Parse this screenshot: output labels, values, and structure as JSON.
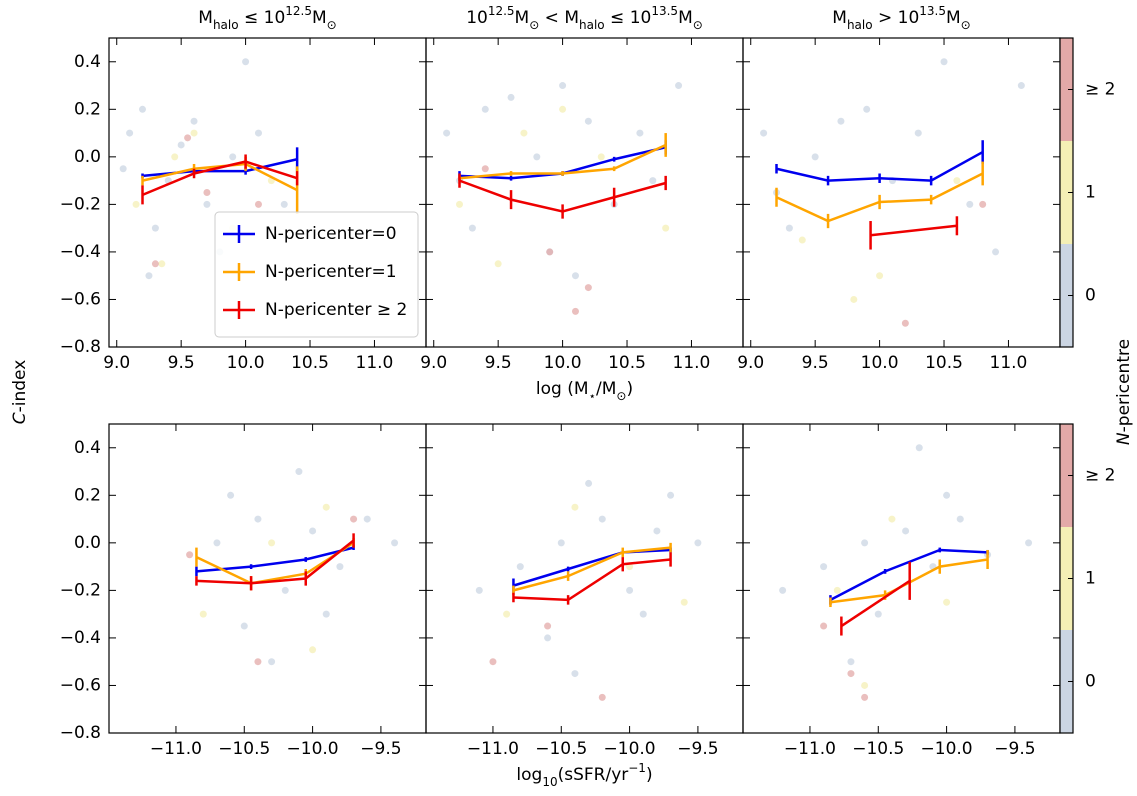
{
  "ylabel": [
    {
      "text": "C",
      "style": "italic"
    },
    {
      "text": "-index"
    }
  ],
  "colorbar": {
    "label": [
      {
        "text": "N",
        "style": "italic"
      },
      {
        "text": "-pericentre"
      }
    ],
    "lim": [
      -0.5,
      2.5
    ],
    "ticks": [
      0,
      1,
      {
        "value": 2,
        "label": "≥ 2"
      }
    ],
    "colors": [
      "#cbd5e3",
      "#f4efb5",
      "#e3a9a8"
    ]
  },
  "chart_data": [
    {
      "type": "scatter",
      "title": [
        {
          "text": "M"
        },
        {
          "text": "halo",
          "shift": "sub"
        },
        {
          "text": " ≤ 10"
        },
        {
          "text": "12.5",
          "shift": "super"
        },
        {
          "text": "M"
        },
        {
          "text": "⊙",
          "shift": "sub"
        }
      ],
      "xlim": [
        8.94,
        11.4
      ],
      "ylim": [
        -0.8,
        0.5
      ],
      "xticks": [
        {
          "value": 9,
          "label": "9.0"
        },
        9.5,
        {
          "value": 10,
          "label": "10.0"
        },
        10.5,
        {
          "value": 11,
          "label": "11.0"
        }
      ],
      "yticks": [
        0.4,
        0.2,
        {
          "value": 0,
          "label": "0.0"
        },
        {
          "value": -0.2,
          "label": "−0.2"
        },
        {
          "value": -0.4,
          "label": "−0.4"
        },
        {
          "value": -0.6,
          "label": "−0.6"
        },
        {
          "value": -0.8,
          "label": "−0.8"
        }
      ],
      "legend": "lower right",
      "points": [
        {
          "color": "#cbd5e3",
          "x": [
            9.1,
            9.3,
            9.5,
            9.7,
            9.9,
            10.1,
            9.2,
            10.0,
            9.4,
            9.8,
            9.05,
            9.6,
            10.3,
            9.25
          ],
          "y": [
            0.1,
            -0.3,
            0.05,
            -0.2,
            0.0,
            0.1,
            0.2,
            0.4,
            -0.1,
            -0.4,
            -0.05,
            0.15,
            -0.2,
            -0.5
          ]
        },
        {
          "color": "#f4efb5",
          "x": [
            9.15,
            9.6,
            10.2,
            9.35,
            9.9,
            9.45
          ],
          "y": [
            -0.2,
            0.1,
            -0.1,
            -0.45,
            -0.3,
            0.0
          ]
        },
        {
          "color": "#e3a9a8",
          "x": [
            9.3,
            9.7,
            10.1,
            9.55
          ],
          "y": [
            -0.45,
            -0.15,
            -0.2,
            0.08
          ]
        }
      ],
      "series": [
        {
          "name": "N-pericenter=0",
          "color": "#0000ee",
          "x": [
            9.2,
            9.6,
            10.0,
            10.4
          ],
          "values": [
            -0.08,
            -0.06,
            -0.06,
            -0.01
          ],
          "errors": [
            0.01,
            0.01,
            0.015,
            0.05
          ]
        },
        {
          "name": "N-pericenter=1",
          "color": "#ffa500",
          "x": [
            9.2,
            9.6,
            10.0,
            10.4
          ],
          "values": [
            -0.1,
            -0.05,
            -0.03,
            -0.14
          ],
          "errors": [
            0.02,
            0.02,
            0.03,
            0.1
          ]
        },
        {
          "name": "N-pericenter ≥ 2",
          "color": "#ee0000",
          "x": [
            9.2,
            9.6,
            10.0,
            10.4
          ],
          "values": [
            -0.16,
            -0.07,
            -0.02,
            -0.09
          ],
          "errors": [
            0.04,
            0.02,
            0.03,
            0.03
          ]
        }
      ]
    },
    {
      "type": "scatter",
      "title": [
        {
          "text": "10"
        },
        {
          "text": "12.5",
          "shift": "super"
        },
        {
          "text": "M"
        },
        {
          "text": "⊙",
          "shift": "sub"
        },
        {
          "text": " < M"
        },
        {
          "text": "halo",
          "shift": "sub"
        },
        {
          "text": " ≤ 10"
        },
        {
          "text": "13.5",
          "shift": "super"
        },
        {
          "text": "M"
        },
        {
          "text": "⊙",
          "shift": "sub"
        }
      ],
      "xlabel": [
        {
          "text": "log (M"
        },
        {
          "text": "⋆",
          "shift": "sub"
        },
        {
          "text": "/M"
        },
        {
          "text": "⊙",
          "shift": "sub"
        },
        {
          "text": ")"
        }
      ],
      "xlim": [
        8.94,
        11.4
      ],
      "ylim": [
        -0.8,
        0.5
      ],
      "xticks": [
        {
          "value": 9,
          "label": "9.0"
        },
        9.5,
        {
          "value": 10,
          "label": "10.0"
        },
        10.5,
        {
          "value": 11,
          "label": "11.0"
        }
      ],
      "points": [
        {
          "color": "#cbd5e3",
          "x": [
            9.1,
            9.4,
            9.8,
            10.2,
            10.6,
            9.3,
            9.9,
            10.4,
            10.9,
            9.6,
            10.1,
            9.2,
            10.7,
            10.0
          ],
          "y": [
            0.1,
            0.2,
            0.0,
            0.15,
            0.1,
            -0.3,
            -0.4,
            -0.2,
            0.3,
            0.25,
            -0.5,
            -0.1,
            -0.1,
            0.3
          ]
        },
        {
          "color": "#f4efb5",
          "x": [
            9.2,
            9.7,
            10.3,
            10.8,
            9.5,
            10.0
          ],
          "y": [
            -0.2,
            0.1,
            0.0,
            -0.3,
            -0.45,
            0.2
          ]
        },
        {
          "color": "#e3a9a8",
          "x": [
            9.4,
            9.9,
            10.2,
            10.1
          ],
          "y": [
            -0.05,
            -0.4,
            -0.55,
            -0.65
          ]
        }
      ],
      "series": [
        {
          "color": "#0000ee",
          "x": [
            9.2,
            9.6,
            10.0,
            10.4,
            10.8
          ],
          "values": [
            -0.08,
            -0.09,
            -0.07,
            -0.01,
            0.04
          ],
          "errors": [
            0.02,
            0.01,
            0.01,
            0.01,
            0.03
          ]
        },
        {
          "color": "#ffa500",
          "x": [
            9.2,
            9.6,
            10.0,
            10.4,
            10.8
          ],
          "values": [
            -0.09,
            -0.07,
            -0.07,
            -0.05,
            0.05
          ],
          "errors": [
            0.01,
            0.01,
            0.01,
            0.01,
            0.05
          ]
        },
        {
          "color": "#ee0000",
          "x": [
            9.2,
            9.6,
            10.0,
            10.4,
            10.8
          ],
          "values": [
            -0.1,
            -0.18,
            -0.23,
            -0.17,
            -0.11
          ],
          "errors": [
            0.03,
            0.04,
            0.03,
            0.04,
            0.03
          ]
        }
      ]
    },
    {
      "type": "scatter",
      "title": [
        {
          "text": "M"
        },
        {
          "text": "halo",
          "shift": "sub"
        },
        {
          "text": " > 10"
        },
        {
          "text": "13.5",
          "shift": "super"
        },
        {
          "text": "M"
        },
        {
          "text": "⊙",
          "shift": "sub"
        }
      ],
      "xlim": [
        8.94,
        11.4
      ],
      "ylim": [
        -0.8,
        0.5
      ],
      "xticks": [
        {
          "value": 9,
          "label": "9.0"
        },
        9.5,
        {
          "value": 10,
          "label": "10.0"
        },
        10.5,
        {
          "value": 11,
          "label": "11.0"
        }
      ],
      "points": [
        {
          "color": "#cbd5e3",
          "x": [
            9.1,
            9.5,
            9.9,
            10.3,
            10.7,
            11.1,
            9.3,
            10.1,
            10.5,
            9.7,
            10.9,
            9.2
          ],
          "y": [
            0.1,
            0.0,
            0.2,
            0.1,
            -0.2,
            0.3,
            -0.3,
            -0.1,
            0.4,
            0.15,
            -0.4,
            -0.15
          ]
        },
        {
          "color": "#f4efb5",
          "x": [
            9.4,
            10.0,
            10.6,
            9.8
          ],
          "y": [
            -0.35,
            -0.5,
            -0.1,
            -0.6
          ]
        },
        {
          "color": "#e3a9a8",
          "x": [
            10.2,
            10.8
          ],
          "y": [
            -0.7,
            -0.2
          ]
        }
      ],
      "series": [
        {
          "color": "#0000ee",
          "x": [
            9.2,
            9.6,
            10.0,
            10.4,
            10.8
          ],
          "values": [
            -0.05,
            -0.1,
            -0.09,
            -0.1,
            0.02
          ],
          "errors": [
            0.02,
            0.02,
            0.02,
            0.02,
            0.05
          ]
        },
        {
          "color": "#ffa500",
          "x": [
            9.2,
            9.6,
            10.0,
            10.4,
            10.8
          ],
          "values": [
            -0.17,
            -0.27,
            -0.19,
            -0.18,
            -0.07
          ],
          "errors": [
            0.04,
            0.03,
            0.03,
            0.02,
            0.05
          ]
        },
        {
          "color": "#ee0000",
          "x": [
            9.93,
            10.6
          ],
          "values": [
            -0.33,
            -0.29
          ],
          "errors": [
            0.06,
            0.04
          ]
        }
      ]
    },
    {
      "type": "scatter",
      "xlim": [
        -11.49,
        -9.17
      ],
      "ylim": [
        -0.8,
        0.5
      ],
      "xticks": [
        {
          "value": -11,
          "label": "−11.0"
        },
        {
          "value": -10.5,
          "label": "−10.5"
        },
        {
          "value": -10,
          "label": "−10.0"
        },
        {
          "value": -9.5,
          "label": "−9.5"
        }
      ],
      "yticks": [
        0.4,
        0.2,
        {
          "value": 0,
          "label": "0.0"
        },
        {
          "value": -0.2,
          "label": "−0.2"
        },
        {
          "value": -0.4,
          "label": "−0.4"
        },
        {
          "value": -0.6,
          "label": "−0.6"
        },
        {
          "value": -0.8,
          "label": "−0.8"
        }
      ],
      "points": [
        {
          "color": "#cbd5e3",
          "x": [
            -10.7,
            -10.4,
            -10.2,
            -10.0,
            -9.8,
            -9.6,
            -10.5,
            -10.1,
            -9.9,
            -10.3,
            -9.4,
            -10.6
          ],
          "y": [
            0.0,
            0.1,
            -0.2,
            0.05,
            -0.1,
            0.1,
            -0.35,
            0.3,
            -0.3,
            -0.5,
            0.0,
            0.2
          ]
        },
        {
          "color": "#f4efb5",
          "x": [
            -10.8,
            -10.3,
            -9.9,
            -10.0
          ],
          "y": [
            -0.3,
            0.0,
            0.15,
            -0.45
          ]
        },
        {
          "color": "#e3a9a8",
          "x": [
            -10.4,
            -9.7,
            -10.9
          ],
          "y": [
            -0.5,
            0.1,
            -0.05
          ]
        }
      ],
      "series": [
        {
          "color": "#0000ee",
          "x": [
            -10.85,
            -10.45,
            -10.05,
            -9.7
          ],
          "values": [
            -0.12,
            -0.1,
            -0.07,
            -0.02
          ],
          "errors": [
            0.02,
            0.01,
            0.01,
            0.01
          ]
        },
        {
          "color": "#ffa500",
          "x": [
            -10.85,
            -10.45,
            -10.05,
            -9.7
          ],
          "values": [
            -0.06,
            -0.17,
            -0.13,
            0.0
          ],
          "errors": [
            0.04,
            0.03,
            0.02,
            0.02
          ]
        },
        {
          "color": "#ee0000",
          "x": [
            -10.85,
            -10.45,
            -10.05,
            -9.7
          ],
          "values": [
            -0.16,
            -0.17,
            -0.15,
            0.01
          ],
          "errors": [
            0.02,
            0.03,
            0.03,
            0.03
          ]
        }
      ]
    },
    {
      "type": "scatter",
      "xlabel": [
        {
          "text": "log"
        },
        {
          "text": "10",
          "shift": "sub"
        },
        {
          "text": "(sSFR/yr"
        },
        {
          "text": "−1",
          "shift": "super"
        },
        {
          "text": ")"
        }
      ],
      "xlim": [
        -11.49,
        -9.17
      ],
      "ylim": [
        -0.8,
        0.5
      ],
      "xticks": [
        {
          "value": -11,
          "label": "−11.0"
        },
        {
          "value": -10.5,
          "label": "−10.5"
        },
        {
          "value": -10,
          "label": "−10.0"
        },
        {
          "value": -9.5,
          "label": "−9.5"
        }
      ],
      "points": [
        {
          "color": "#cbd5e3",
          "x": [
            -10.8,
            -10.5,
            -10.2,
            -10.0,
            -9.8,
            -9.5,
            -10.6,
            -10.3,
            -9.9,
            -11.1,
            -10.4,
            -9.7
          ],
          "y": [
            -0.1,
            0.0,
            0.1,
            -0.2,
            0.05,
            0.0,
            -0.4,
            0.25,
            -0.3,
            -0.2,
            -0.55,
            0.2
          ]
        },
        {
          "color": "#f4efb5",
          "x": [
            -10.9,
            -10.4,
            -10.0,
            -9.6
          ],
          "y": [
            -0.3,
            0.15,
            -0.1,
            -0.25
          ]
        },
        {
          "color": "#e3a9a8",
          "x": [
            -11.0,
            -10.6,
            -10.2
          ],
          "y": [
            -0.5,
            -0.35,
            -0.65
          ]
        }
      ],
      "series": [
        {
          "color": "#0000ee",
          "x": [
            -10.85,
            -10.45,
            -10.05,
            -9.7
          ],
          "values": [
            -0.18,
            -0.11,
            -0.04,
            -0.03
          ],
          "errors": [
            0.03,
            0.01,
            0.01,
            0.01
          ]
        },
        {
          "color": "#ffa500",
          "x": [
            -10.85,
            -10.45,
            -10.05,
            -9.7
          ],
          "values": [
            -0.2,
            -0.14,
            -0.04,
            -0.02
          ],
          "errors": [
            0.02,
            0.02,
            0.02,
            0.02
          ]
        },
        {
          "color": "#ee0000",
          "x": [
            -10.85,
            -10.45,
            -10.05,
            -9.7
          ],
          "values": [
            -0.23,
            -0.24,
            -0.09,
            -0.07
          ],
          "errors": [
            0.02,
            0.02,
            0.03,
            0.03
          ]
        }
      ]
    },
    {
      "type": "scatter",
      "xlim": [
        -11.49,
        -9.17
      ],
      "ylim": [
        -0.8,
        0.5
      ],
      "xticks": [
        {
          "value": -11,
          "label": "−11.0"
        },
        {
          "value": -10.5,
          "label": "−10.5"
        },
        {
          "value": -10,
          "label": "−10.0"
        },
        {
          "value": -9.5,
          "label": "−9.5"
        }
      ],
      "points": [
        {
          "color": "#cbd5e3",
          "x": [
            -10.9,
            -10.6,
            -10.3,
            -10.1,
            -9.9,
            -9.7,
            -10.5,
            -10.2,
            -11.2,
            -10.0,
            -9.4,
            -10.7
          ],
          "y": [
            -0.1,
            0.0,
            0.05,
            -0.1,
            0.1,
            -0.05,
            -0.3,
            0.4,
            -0.2,
            0.2,
            0.0,
            -0.5
          ]
        },
        {
          "color": "#f4efb5",
          "x": [
            -10.8,
            -10.4,
            -10.0,
            -10.6
          ],
          "y": [
            -0.2,
            0.1,
            -0.25,
            -0.6
          ]
        },
        {
          "color": "#e3a9a8",
          "x": [
            -10.9,
            -10.7,
            -10.6
          ],
          "y": [
            -0.35,
            -0.55,
            -0.65
          ]
        }
      ],
      "series": [
        {
          "color": "#0000ee",
          "x": [
            -10.85,
            -10.45,
            -10.05,
            -9.7
          ],
          "values": [
            -0.24,
            -0.12,
            -0.03,
            -0.04
          ],
          "errors": [
            0.02,
            0.01,
            0.01,
            0.01
          ]
        },
        {
          "color": "#ffa500",
          "x": [
            -10.85,
            -10.45,
            -10.05,
            -9.7
          ],
          "values": [
            -0.25,
            -0.22,
            -0.1,
            -0.07
          ],
          "errors": [
            0.02,
            0.02,
            0.03,
            0.04
          ]
        },
        {
          "color": "#ee0000",
          "x": [
            -10.77,
            -10.27
          ],
          "values": [
            -0.35,
            -0.16
          ],
          "errors": [
            0.04,
            0.08
          ]
        }
      ]
    }
  ]
}
